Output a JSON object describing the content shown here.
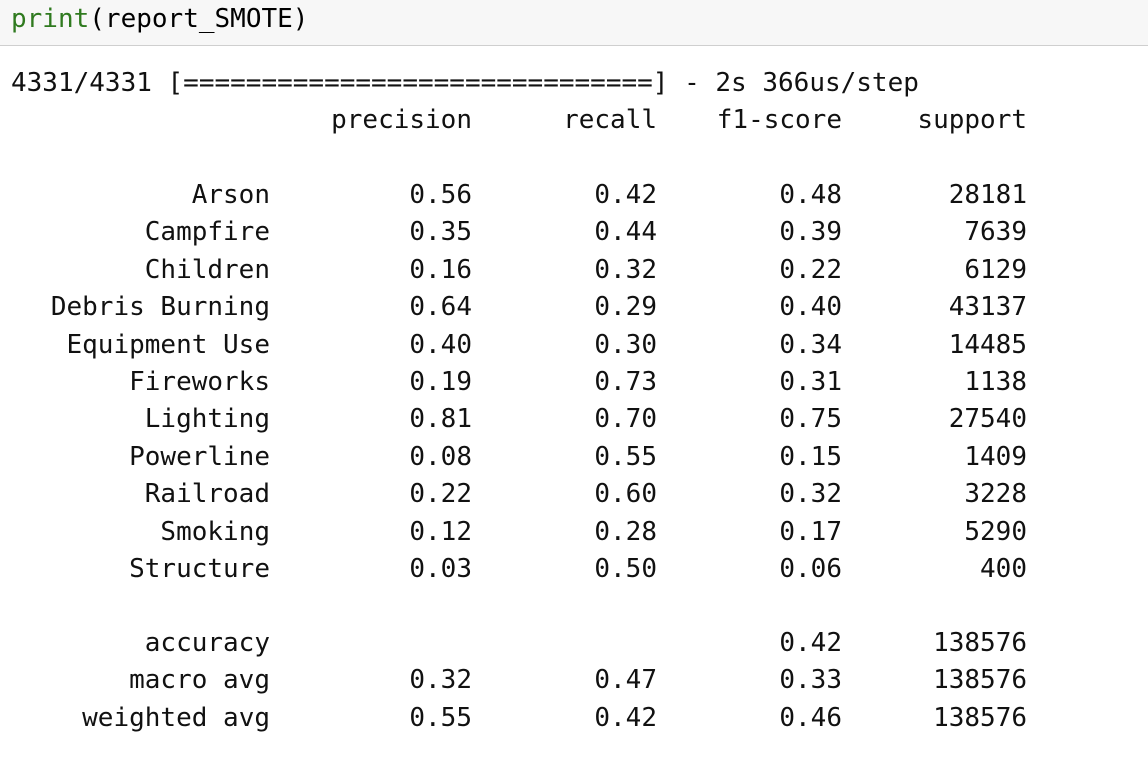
{
  "input_cell": {
    "builtin": "print",
    "args": "(report_SMOTE)"
  },
  "output": {
    "progress_line": "4331/4331 [==============================] - 2s 366us/step",
    "headers": {
      "precision": "precision",
      "recall": "recall",
      "f1_score": "f1-score",
      "support": "support"
    },
    "class_rows": [
      {
        "label": "Arson",
        "precision": "0.56",
        "recall": "0.42",
        "f1": "0.48",
        "support": "28181"
      },
      {
        "label": "Campfire",
        "precision": "0.35",
        "recall": "0.44",
        "f1": "0.39",
        "support": "7639"
      },
      {
        "label": "Children",
        "precision": "0.16",
        "recall": "0.32",
        "f1": "0.22",
        "support": "6129"
      },
      {
        "label": "Debris Burning",
        "precision": "0.64",
        "recall": "0.29",
        "f1": "0.40",
        "support": "43137"
      },
      {
        "label": "Equipment Use",
        "precision": "0.40",
        "recall": "0.30",
        "f1": "0.34",
        "support": "14485"
      },
      {
        "label": "Fireworks",
        "precision": "0.19",
        "recall": "0.73",
        "f1": "0.31",
        "support": "1138"
      },
      {
        "label": "Lighting",
        "precision": "0.81",
        "recall": "0.70",
        "f1": "0.75",
        "support": "27540"
      },
      {
        "label": "Powerline",
        "precision": "0.08",
        "recall": "0.55",
        "f1": "0.15",
        "support": "1409"
      },
      {
        "label": "Railroad",
        "precision": "0.22",
        "recall": "0.60",
        "f1": "0.32",
        "support": "3228"
      },
      {
        "label": "Smoking",
        "precision": "0.12",
        "recall": "0.28",
        "f1": "0.17",
        "support": "5290"
      },
      {
        "label": "Structure",
        "precision": "0.03",
        "recall": "0.50",
        "f1": "0.06",
        "support": "400"
      }
    ],
    "summary_rows": [
      {
        "label": "accuracy",
        "precision": "",
        "recall": "",
        "f1": "0.42",
        "support": "138576"
      },
      {
        "label": "macro avg",
        "precision": "0.32",
        "recall": "0.47",
        "f1": "0.33",
        "support": "138576"
      },
      {
        "label": "weighted avg",
        "precision": "0.55",
        "recall": "0.42",
        "f1": "0.46",
        "support": "138576"
      }
    ]
  }
}
